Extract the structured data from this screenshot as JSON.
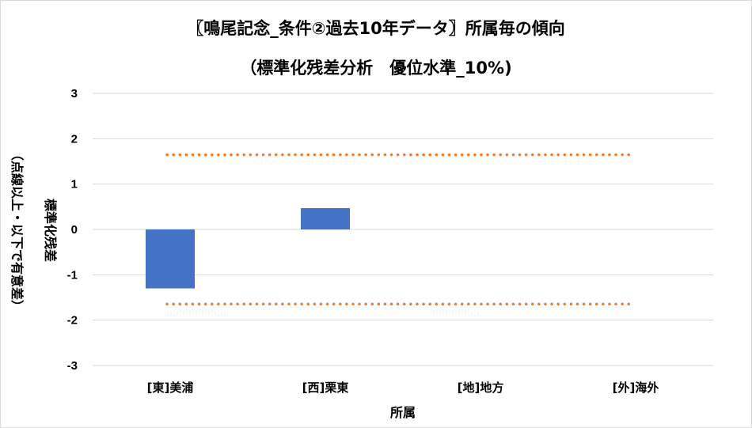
{
  "chart_data": {
    "type": "bar",
    "title_line1": "〖鳴尾記念_条件②過去10年データ〗所属毎の傾向",
    "title_line2": "（標準化残差分析　優位水準_10%)",
    "xlabel": "所属",
    "ylabel_main": "標準化残差",
    "ylabel_sub": "（点線以上・以下で有意差）",
    "categories": [
      "[東]美浦",
      "[西]栗東",
      "[地]地方",
      "[外]海外"
    ],
    "series": [
      {
        "values": [
          -1.3,
          0.47,
          0,
          0
        ]
      }
    ],
    "thresholds": [
      1.645,
      -1.645
    ],
    "ylim": [
      -3,
      3
    ],
    "yticks": [
      3,
      2,
      1,
      0,
      -1,
      -2,
      -3
    ],
    "grid": true,
    "colors": {
      "bar": "#4472c4",
      "threshold": "#ed7d31",
      "grid": "#d9d9d9"
    }
  }
}
